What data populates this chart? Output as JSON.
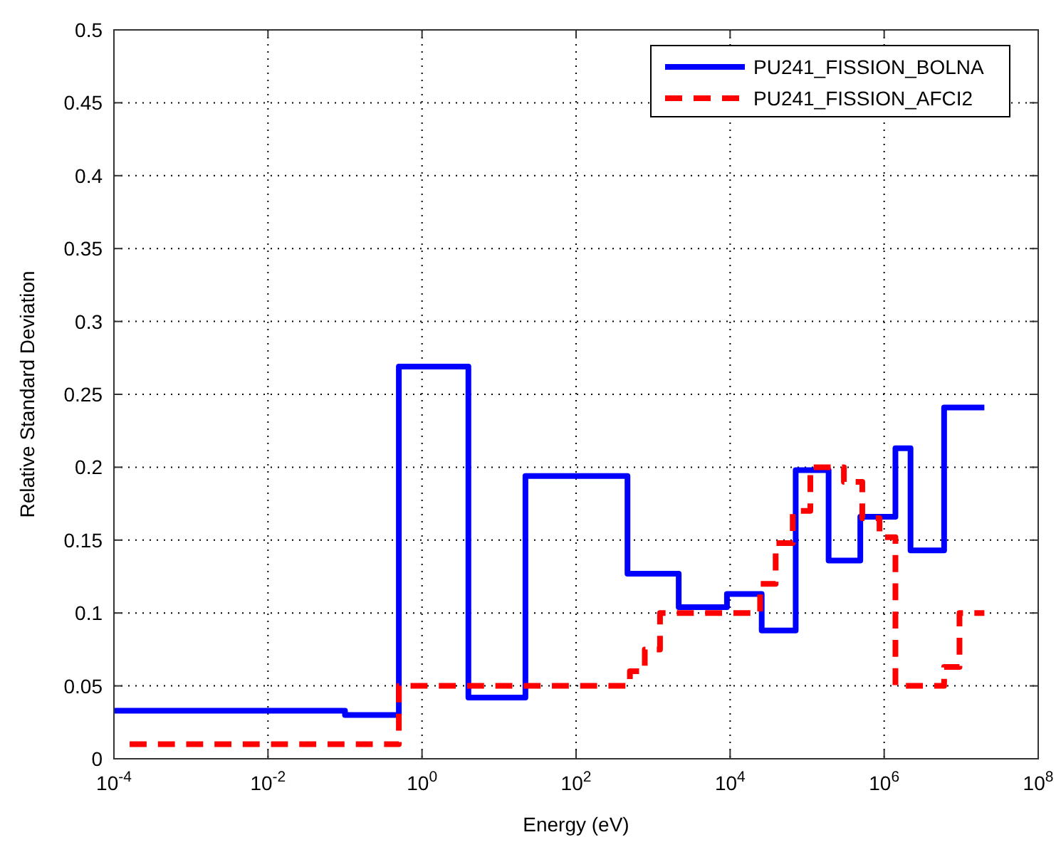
{
  "chart_data": {
    "type": "step",
    "xlabel": "Energy (eV)",
    "ylabel": "Relative Standard Deviation",
    "log": "x",
    "grid": true,
    "legend": "top right",
    "xlim": [
      0.0001,
      100000000
    ],
    "ylim": [
      0,
      0.5
    ],
    "xticks": [
      {
        "value": 0.0001,
        "label": "10$^{-4}$"
      },
      {
        "value": 0.01,
        "label": "10$^{-2}$"
      },
      {
        "value": 1,
        "label": "10$^{0}$"
      },
      {
        "value": 100,
        "label": "10$^{2}$"
      },
      {
        "value": 10000,
        "label": "10$^{4}$"
      },
      {
        "value": 1000000,
        "label": "10$^{6}$"
      },
      {
        "value": 100000000,
        "label": "10$^{8}$"
      }
    ],
    "yticks": [
      0,
      0.05,
      0.1,
      0.15,
      0.2,
      0.25,
      0.3,
      0.35,
      0.4,
      0.45,
      0.5
    ],
    "series": [
      {
        "name": "PU241_FISSION_BOLNA",
        "color": "#0000ff",
        "line_style": "solid",
        "x": [
          0.0001,
          0.1,
          0.5,
          4,
          22,
          465,
          2150,
          9100,
          25700,
          71000,
          190000,
          490000,
          1400000,
          2200000,
          6000000,
          20000000
        ],
        "values": [
          0.033,
          0.03,
          0.269,
          0.042,
          0.194,
          0.127,
          0.104,
          0.113,
          0.088,
          0.198,
          0.136,
          0.166,
          0.213,
          0.143,
          0.241,
          0.241
        ]
      },
      {
        "name": "PU241_FISSION_AFCI2",
        "color": "#ff0000",
        "line_style": "dashed",
        "x": [
          0.00016,
          0.5,
          500,
          780,
          1230,
          24500,
          39000,
          65000,
          110000,
          300000,
          520000,
          870000,
          1400000,
          6000000,
          9500000,
          20000000
        ],
        "values": [
          0.01,
          0.05,
          0.06,
          0.075,
          0.1,
          0.12,
          0.148,
          0.17,
          0.2,
          0.19,
          0.165,
          0.152,
          0.05,
          0.063,
          0.1,
          0.1
        ]
      }
    ]
  }
}
